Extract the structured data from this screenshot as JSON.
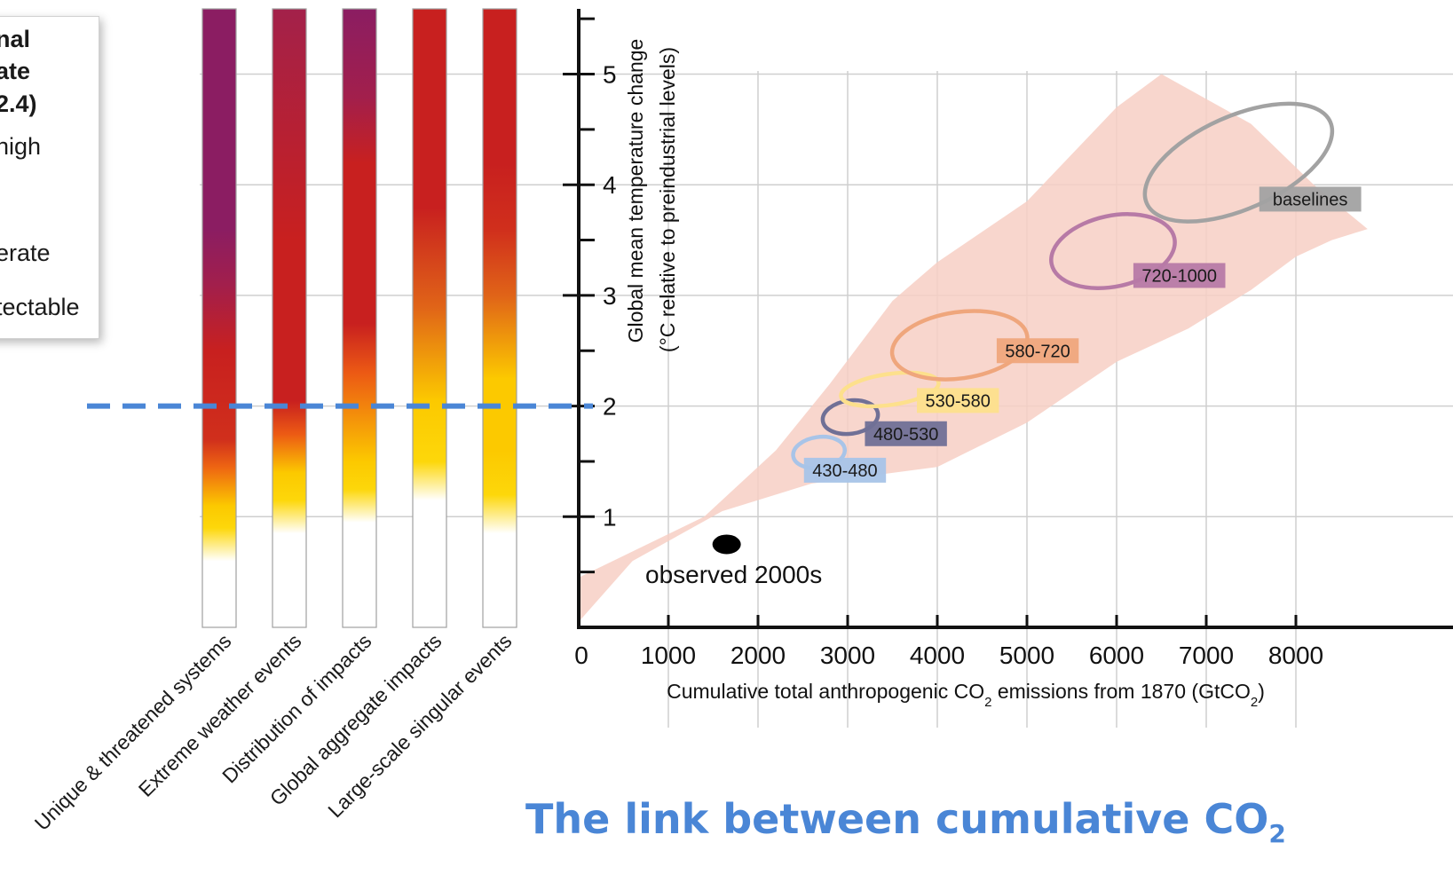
{
  "legend": {
    "lines": [
      "nal",
      "ate",
      "2.4)",
      "nigh",
      "erate",
      "tectable"
    ]
  },
  "caption": {
    "text": "The link between cumulative CO",
    "subscript": "2"
  },
  "chart_data": [
    {
      "type": "heatmap",
      "description_of_scale": "risk level colour bars (white = undetectable, yellow = moderate, red = high, purple = very high)",
      "categories": [
        "Unique & threatened systems",
        "Extreme weather events",
        "Distribution of impacts",
        "Global aggregate impacts",
        "Large-scale singular events"
      ],
      "colors": {
        "undetectable": "#ffffff",
        "moderate": "#fccf00",
        "high": "#c8201f",
        "very_high": "#8b1d62"
      },
      "gradients": [
        [
          [
            0.0,
            "#ffffff"
          ],
          [
            0.6,
            "#ffffff"
          ],
          [
            0.9,
            "#fdd70a"
          ],
          [
            1.1,
            "#fcc900"
          ],
          [
            1.45,
            "#ee6512"
          ],
          [
            1.7,
            "#d02f1c"
          ],
          [
            2.5,
            "#c8201f"
          ],
          [
            3.1,
            "#a21f4c"
          ],
          [
            3.6,
            "#8b1d62"
          ],
          [
            5.6,
            "#8b1d62"
          ]
        ],
        [
          [
            0.0,
            "#ffffff"
          ],
          [
            0.85,
            "#ffffff"
          ],
          [
            1.15,
            "#fdd70a"
          ],
          [
            1.4,
            "#fcc900"
          ],
          [
            1.75,
            "#ec5a14"
          ],
          [
            2.05,
            "#c8201f"
          ],
          [
            3.5,
            "#c8201f"
          ],
          [
            5.6,
            "#a3214a"
          ]
        ],
        [
          [
            0.0,
            "#ffffff"
          ],
          [
            0.95,
            "#ffffff"
          ],
          [
            1.25,
            "#fdd70a"
          ],
          [
            1.5,
            "#fcc900"
          ],
          [
            2.3,
            "#ec5a14"
          ],
          [
            2.75,
            "#c8201f"
          ],
          [
            4.2,
            "#c8201f"
          ],
          [
            4.8,
            "#a21f4c"
          ],
          [
            5.6,
            "#8b1d62"
          ]
        ],
        [
          [
            0.0,
            "#ffffff"
          ],
          [
            1.15,
            "#ffffff"
          ],
          [
            1.5,
            "#fdd70a"
          ],
          [
            2.05,
            "#fcc900"
          ],
          [
            2.9,
            "#e06418"
          ],
          [
            3.8,
            "#c8201f"
          ],
          [
            5.6,
            "#c8201f"
          ]
        ],
        [
          [
            0.0,
            "#ffffff"
          ],
          [
            0.85,
            "#ffffff"
          ],
          [
            1.2,
            "#fdd70a"
          ],
          [
            1.6,
            "#fcc900"
          ],
          [
            2.25,
            "#fcc900"
          ],
          [
            3.0,
            "#e06418"
          ],
          [
            3.6,
            "#d02f1c"
          ],
          [
            4.2,
            "#c8201f"
          ],
          [
            5.6,
            "#c8201f"
          ]
        ]
      ]
    },
    {
      "type": "scatter",
      "xlabel": "Cumulative total anthropogenic CO",
      "xlabel_subscript_1": "2",
      "xlabel_mid": " emissions from 1870 (GtCO",
      "xlabel_subscript_2": "2",
      "xlabel_end": ")",
      "ylabel_line1": "Global mean temperature change",
      "ylabel_line2": "(°C relative to preindustrial levels)",
      "xlim": [
        0,
        9000
      ],
      "ylim": [
        0,
        5.6
      ],
      "xticks": [
        0,
        1000,
        2000,
        3000,
        4000,
        5000,
        6000,
        7000,
        8000
      ],
      "yticks": [
        1,
        2,
        3,
        4,
        5
      ],
      "grid": true,
      "reference_line_y": 2,
      "reference_line_color": "#4a86d6",
      "observed": {
        "label": "observed 2000s",
        "x": 1650,
        "y": 0.75,
        "color": "#000000"
      },
      "shaded_range_color": "#f7cfc4",
      "shaded_range": [
        [
          0,
          0.05
        ],
        [
          600,
          0.6
        ],
        [
          1600,
          1.05
        ],
        [
          2600,
          1.3
        ],
        [
          4000,
          1.45
        ],
        [
          4500,
          1.65
        ],
        [
          5000,
          1.85
        ],
        [
          6000,
          2.4
        ],
        [
          6800,
          2.7
        ],
        [
          7500,
          3.05
        ],
        [
          8000,
          3.35
        ],
        [
          8400,
          3.5
        ],
        [
          8800,
          3.6
        ],
        [
          8200,
          4.0
        ],
        [
          7500,
          4.55
        ],
        [
          6500,
          5.0
        ],
        [
          6000,
          4.7
        ],
        [
          5000,
          3.85
        ],
        [
          4000,
          3.3
        ],
        [
          3500,
          2.95
        ],
        [
          2800,
          2.2
        ],
        [
          2200,
          1.6
        ],
        [
          1400,
          1.0
        ],
        [
          0,
          0.45
        ]
      ],
      "scenarios": [
        {
          "label": "430-480",
          "cx": 2680,
          "cy": 1.58,
          "rx": 290,
          "ry": 0.14,
          "color": "#a8c4e8",
          "label_x": 2970,
          "label_y": 1.42
        },
        {
          "label": "480-530",
          "cx": 3030,
          "cy": 1.9,
          "rx": 310,
          "ry": 0.15,
          "color": "#707096",
          "label_x": 3650,
          "label_y": 1.75
        },
        {
          "label": "530-580",
          "cx": 3470,
          "cy": 2.15,
          "rx": 550,
          "ry": 0.14,
          "color": "#fde08c",
          "label_x": 4230,
          "label_y": 2.05
        },
        {
          "label": "580-720",
          "cx": 4250,
          "cy": 2.55,
          "rx": 760,
          "ry": 0.3,
          "color": "#efa67c",
          "label_x": 5120,
          "label_y": 2.5
        },
        {
          "label": "720-1000",
          "cx": 5960,
          "cy": 3.4,
          "rx": 700,
          "ry": 0.32,
          "color": "#b77aa6",
          "label_x": 6700,
          "label_y": 3.18
        },
        {
          "label": "baselines",
          "cx": 7360,
          "cy": 4.2,
          "rx": 1120,
          "ry": 0.42,
          "color": "#a2a2a2",
          "label_x": 8160,
          "label_y": 3.87
        }
      ]
    }
  ]
}
